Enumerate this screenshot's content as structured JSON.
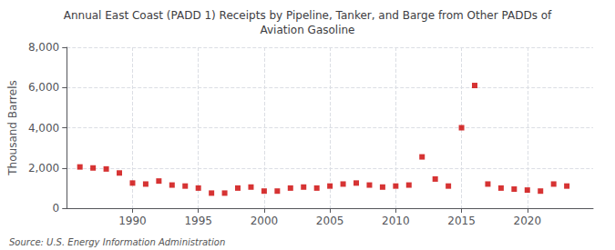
{
  "chart_data": {
    "type": "scatter",
    "title": "Annual East Coast (PADD 1) Receipts by Pipeline, Tanker, and Barge from Other PADDs of\nAviation Gasoline",
    "ylabel": "Thousand Barrels",
    "source": "Source: U.S. Energy Information Administration",
    "x": [
      1986,
      1987,
      1988,
      1989,
      1990,
      1991,
      1992,
      1993,
      1994,
      1995,
      1996,
      1997,
      1998,
      1999,
      2000,
      2001,
      2002,
      2003,
      2004,
      2005,
      2006,
      2007,
      2008,
      2009,
      2010,
      2011,
      2012,
      2013,
      2014,
      2015,
      2016,
      2017,
      2018,
      2019,
      2020,
      2021,
      2022,
      2023
    ],
    "values": [
      2050,
      2000,
      1950,
      1750,
      1250,
      1200,
      1350,
      1150,
      1100,
      1000,
      750,
      750,
      1000,
      1050,
      850,
      850,
      1000,
      1050,
      1000,
      1100,
      1200,
      1250,
      1150,
      1050,
      1100,
      1150,
      2550,
      1450,
      1100,
      4000,
      6100,
      1200,
      1000,
      950,
      900,
      850,
      1200,
      1100
    ],
    "color": "#cc0000",
    "marker": "square",
    "xlim": [
      1985,
      2025
    ],
    "xticks": [
      1990,
      1995,
      2000,
      2005,
      2010,
      2015,
      2020
    ],
    "ylim": [
      0,
      8000
    ],
    "yticks": [
      0,
      {
        "value": 2000,
        "label": "2,000"
      },
      {
        "value": 4000,
        "label": "4,000"
      },
      {
        "value": 6000,
        "label": "6,000"
      },
      {
        "value": 8000,
        "label": "8,000"
      }
    ],
    "grid": true
  }
}
